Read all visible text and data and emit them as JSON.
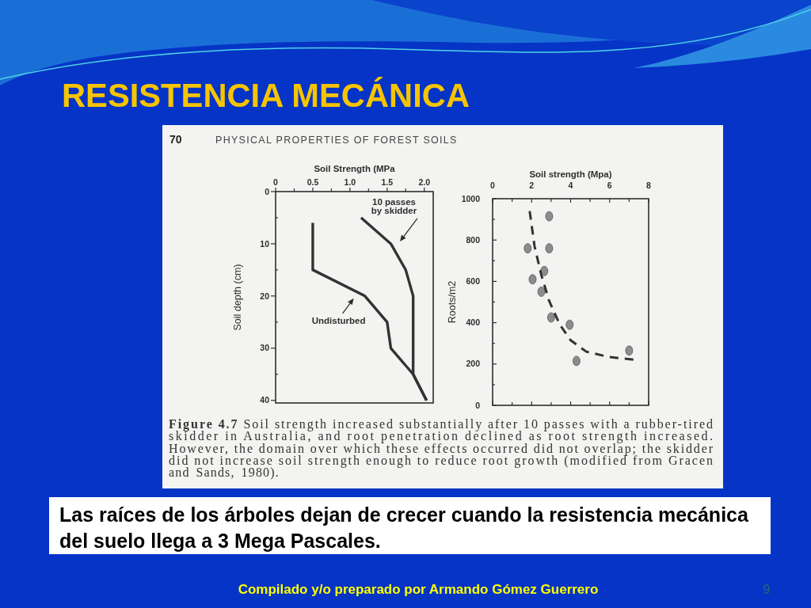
{
  "chart_data": [
    {
      "type": "line",
      "title": "RESISTENCIA MECÁNICA",
      "subtitle": "PHYSICAL PROPERTIES OF FOREST SOILS",
      "xlabel": "Soil Strength (MPa",
      "ylabel": "Soil depth (cm)",
      "xlim": [
        0,
        2.12
      ],
      "xticks": [
        0,
        {
          "value": 0.25,
          "label": null
        },
        0.5,
        {
          "value": 0.75,
          "label": null
        },
        {
          "value": 1,
          "label": "1.0"
        },
        {
          "value": 1.25,
          "label": null
        },
        1.5,
        {
          "value": 1.75,
          "label": null
        },
        {
          "value": 2,
          "label": "2.0"
        }
      ],
      "ylim": [
        40.5,
        0
      ],
      "yticks": [
        0,
        {
          "value": 5,
          "label": null
        },
        10,
        {
          "value": 15,
          "label": null
        },
        20,
        {
          "value": 25,
          "label": null
        },
        30,
        {
          "value": 35,
          "label": null
        },
        40
      ],
      "series": [
        {
          "name": "Undisturbed",
          "color": "#333333",
          "x": [
            0.5,
            0.5,
            1.2,
            1.5,
            1.55,
            1.85,
            2.03
          ],
          "values": [
            6,
            15,
            20,
            25,
            30,
            35,
            40
          ]
        },
        {
          "name": "10 passes by skidder",
          "color": "#333333",
          "x": [
            1.15,
            1.55,
            1.75,
            1.85,
            1.85,
            2.03
          ],
          "values": [
            5,
            10,
            15,
            20,
            35,
            40
          ]
        }
      ],
      "annotations": [
        "70",
        "Figure 4.7 Soil strength increased substantially after 10 passes with a rubber-tired skidder in Australia, and root penetration declined as root strength increased. However, the domain over which these effects occurred did not overlap; the skidder did not increase soil strength enough to reduce root growth (modified from Gracen and Sands, 1980).",
        "Las raíces de los árboles dejan de crecer cuando la resistencia mecánica del suelo llega a 3 Mega Pascales.",
        "Compilado y/o preparado por Armando Gómez Guerrero",
        "9"
      ]
    },
    {
      "type": "scatter",
      "xlabel": "Soil strength (Mpa)",
      "ylabel": "Roots/m2",
      "xlim": [
        0,
        8
      ],
      "xticks": [
        0,
        {
          "value": 1,
          "label": null
        },
        2,
        {
          "value": 3,
          "label": null
        },
        4,
        {
          "value": 5,
          "label": null
        },
        6,
        {
          "value": 7,
          "label": null
        },
        8
      ],
      "ylim": [
        0,
        1000
      ],
      "yticks": [
        0,
        {
          "value": 100,
          "label": null
        },
        200,
        {
          "value": 300,
          "label": null
        },
        400,
        {
          "value": 500,
          "label": null
        },
        600,
        {
          "value": 700,
          "label": null
        },
        800,
        {
          "value": 900,
          "label": null
        },
        1000
      ],
      "series": [
        {
          "color": "#8c8c8c",
          "marker": "circle",
          "x": [
            2.9,
            1.8,
            2.9,
            2.65,
            2.05,
            2.5,
            3.0,
            3.95,
            4.3,
            7.0
          ],
          "values": [
            915,
            760,
            760,
            650,
            610,
            550,
            425,
            390,
            215,
            265
          ]
        },
        {
          "type": "line",
          "color": "#333333",
          "line_style": "dashed",
          "x": [
            1.9,
            2.15,
            2.5,
            2.9,
            3.45,
            4.0,
            4.8,
            5.9,
            7.35
          ],
          "values": [
            940,
            770,
            630,
            505,
            390,
            315,
            260,
            235,
            220
          ]
        }
      ]
    }
  ]
}
